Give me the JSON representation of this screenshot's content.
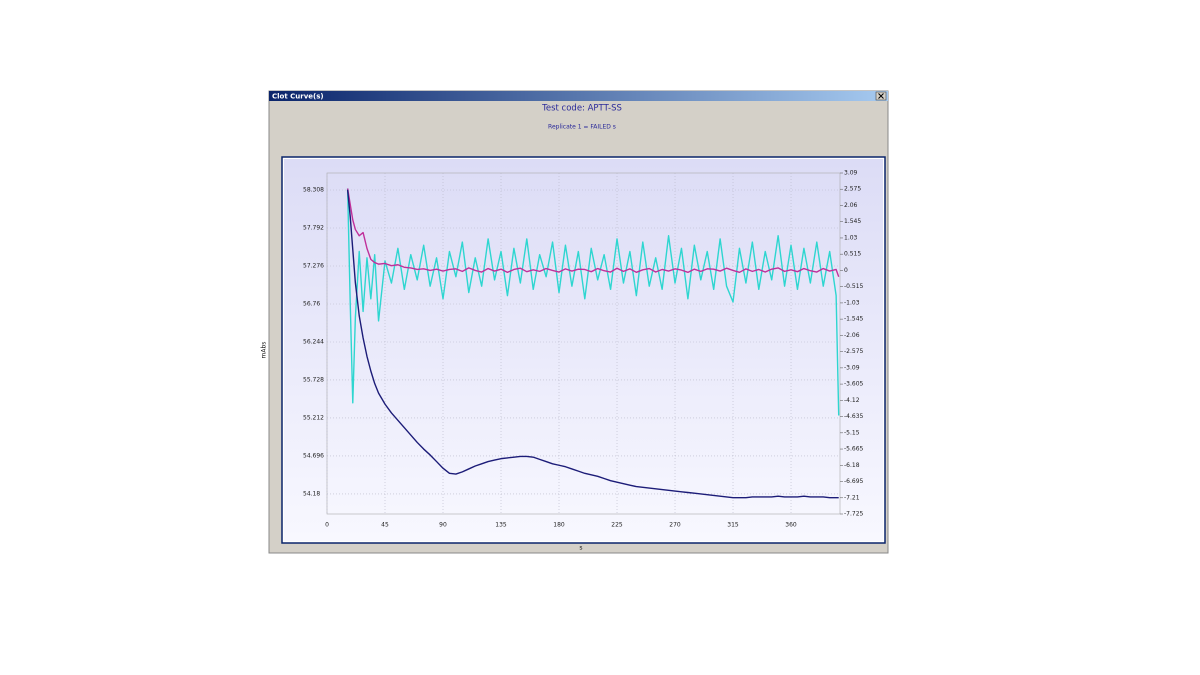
{
  "window": {
    "title": "Clot Curve(s)"
  },
  "chart_data": {
    "type": "line",
    "title": "Test code: APTT-SS",
    "subtitle": "Replicate 1 = FAILED s",
    "x_label": "s",
    "y_label": "mAbs",
    "xlim": [
      0,
      398
    ],
    "xticks": [
      0,
      45,
      90,
      135,
      180,
      225,
      270,
      315,
      360
    ],
    "ylim": [
      53.908,
      58.539
    ],
    "yticks": [
      54.18,
      54.696,
      55.212,
      55.728,
      56.244,
      56.76,
      57.276,
      57.792,
      58.308
    ],
    "y2lim": [
      -7.725,
      3.09
    ],
    "y2ticks": [
      3.09,
      2.575,
      2.06,
      1.545,
      1.03,
      0.515,
      0,
      -0.515,
      -1.03,
      -1.545,
      -2.06,
      -2.575,
      -3.09,
      -3.605,
      -4.12,
      -4.635,
      -5.15,
      -5.665,
      -6.18,
      -6.695,
      -7.21,
      -7.725
    ],
    "grid": true,
    "x": [
      16,
      18,
      20,
      22,
      25,
      28,
      31,
      34,
      37,
      40,
      45,
      50,
      55,
      60,
      65,
      70,
      75,
      80,
      85,
      90,
      95,
      100,
      105,
      110,
      115,
      120,
      125,
      130,
      135,
      140,
      145,
      150,
      155,
      160,
      165,
      170,
      175,
      180,
      185,
      190,
      195,
      200,
      205,
      210,
      215,
      220,
      225,
      230,
      235,
      240,
      245,
      250,
      255,
      260,
      265,
      270,
      275,
      280,
      285,
      290,
      295,
      300,
      305,
      310,
      315,
      320,
      325,
      330,
      335,
      340,
      345,
      350,
      355,
      360,
      365,
      370,
      375,
      380,
      385,
      390,
      395,
      397
    ],
    "series": [
      {
        "color": "#2ed6d0",
        "axis": "y2",
        "values": [
          2.6,
          -1.0,
          -4.2,
          -1.5,
          0.6,
          -1.3,
          0.4,
          -0.9,
          0.5,
          -1.6,
          0.3,
          -0.4,
          0.7,
          -0.6,
          0.5,
          -0.3,
          0.8,
          -0.5,
          0.4,
          -0.9,
          0.6,
          -0.2,
          0.9,
          -0.7,
          0.4,
          -0.5,
          1.0,
          -0.3,
          0.6,
          -0.8,
          0.7,
          -0.4,
          1.0,
          -0.6,
          0.5,
          -0.2,
          0.9,
          -0.7,
          0.8,
          -0.5,
          0.6,
          -0.9,
          0.7,
          -0.3,
          0.5,
          -0.6,
          1.0,
          -0.4,
          0.6,
          -0.8,
          0.9,
          -0.5,
          0.4,
          -0.6,
          1.1,
          -0.4,
          0.7,
          -0.9,
          0.8,
          -0.3,
          0.6,
          -0.6,
          1.0,
          -0.5,
          -1.0,
          0.7,
          -0.4,
          0.9,
          -0.6,
          0.6,
          -0.3,
          1.1,
          -0.5,
          0.8,
          -0.6,
          0.7,
          -0.4,
          0.9,
          -0.5,
          0.6,
          -0.8,
          -4.6
        ]
      },
      {
        "color": "#c0309a",
        "axis": "y2",
        "values": [
          2.6,
          2.1,
          1.6,
          1.3,
          1.1,
          1.2,
          0.7,
          0.35,
          0.25,
          0.2,
          0.22,
          0.15,
          0.18,
          0.1,
          0.08,
          0.03,
          0.05,
          0.0,
          0.04,
          -0.02,
          0.03,
          0.05,
          -0.03,
          0.08,
          0.0,
          -0.05,
          0.06,
          -0.02,
          0.04,
          -0.06,
          0.03,
          0.07,
          -0.04,
          0.02,
          -0.03,
          0.06,
          0.0,
          -0.05,
          0.05,
          -0.02,
          0.04,
          0.03,
          -0.04,
          0.06,
          -0.01,
          -0.05,
          0.07,
          -0.03,
          0.05,
          -0.06,
          0.02,
          0.06,
          -0.05,
          0.03,
          -0.02,
          0.05,
          0.01,
          -0.06,
          0.04,
          -0.03,
          0.05,
          0.04,
          -0.02,
          0.07,
          0.0,
          -0.06,
          0.05,
          -0.03,
          0.03,
          -0.05,
          0.04,
          0.08,
          -0.03,
          0.02,
          -0.04,
          0.06,
          -0.01,
          -0.05,
          0.06,
          -0.02,
          0.03,
          -0.2
        ]
      },
      {
        "color": "#1c1c78",
        "axis": "y",
        "values": [
          58.31,
          57.95,
          57.5,
          57.05,
          56.6,
          56.3,
          56.05,
          55.85,
          55.68,
          55.55,
          55.4,
          55.28,
          55.18,
          55.08,
          54.98,
          54.88,
          54.79,
          54.71,
          54.62,
          54.53,
          54.46,
          54.45,
          54.48,
          54.52,
          54.56,
          54.59,
          54.62,
          54.64,
          54.66,
          54.67,
          54.68,
          54.69,
          54.69,
          54.68,
          54.65,
          54.62,
          54.59,
          54.57,
          54.55,
          54.52,
          54.49,
          54.46,
          54.44,
          54.42,
          54.39,
          54.36,
          54.34,
          54.32,
          54.3,
          54.28,
          54.27,
          54.26,
          54.25,
          54.24,
          54.23,
          54.22,
          54.21,
          54.2,
          54.19,
          54.18,
          54.17,
          54.16,
          54.15,
          54.14,
          54.13,
          54.13,
          54.13,
          54.14,
          54.14,
          54.14,
          54.14,
          54.15,
          54.14,
          54.14,
          54.14,
          54.15,
          54.14,
          54.14,
          54.14,
          54.13,
          54.13,
          54.13
        ]
      }
    ]
  }
}
